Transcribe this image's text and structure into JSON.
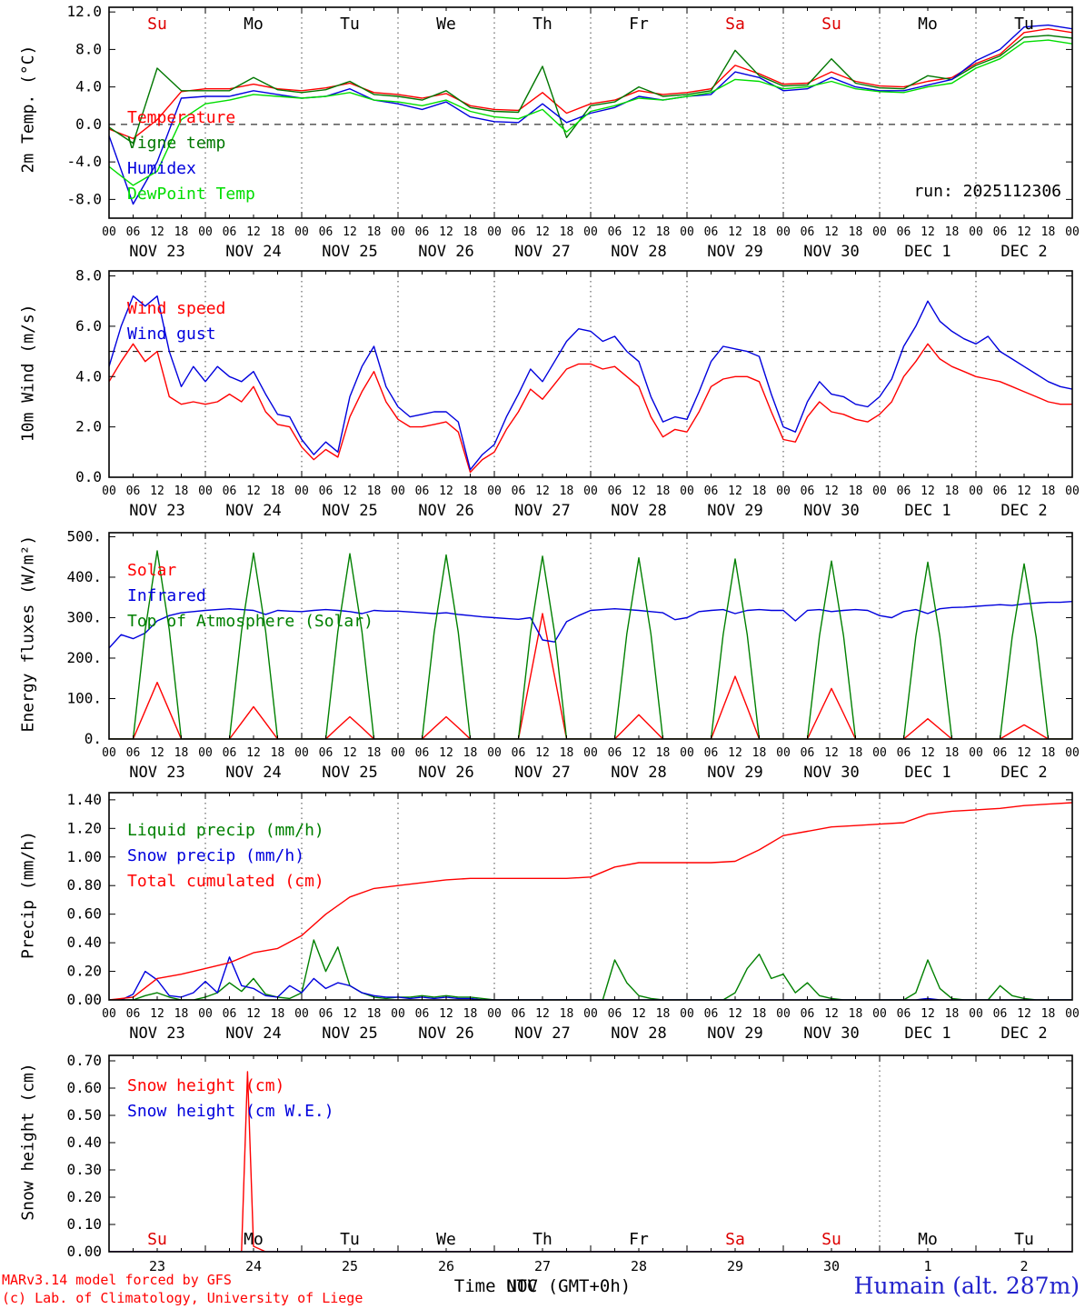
{
  "meta": {
    "run_label": "run: 2025112306",
    "credit_line1": "MARv3.14 model forced by GFS",
    "credit_line2": "(c) Lab. of Climatology, University of Liege",
    "footer_xlabel": "Time UTC (GMT+0h)",
    "footer_month": "NOV",
    "station": "Humain (alt. 287m)",
    "model": "MARv3.14",
    "grid_color": "#444444",
    "frame_color": "#000000"
  },
  "time_axis": {
    "hours_total": 240,
    "tick_step_hours": 6,
    "hour_labels": [
      "00",
      "06",
      "12",
      "18"
    ],
    "dates": [
      "NOV 23",
      "NOV 24",
      "NOV 25",
      "NOV 26",
      "NOV 27",
      "NOV 28",
      "NOV 29",
      "NOV 30",
      "DEC 1",
      "DEC 2"
    ],
    "day_names": [
      "Su",
      "Mo",
      "Tu",
      "We",
      "Th",
      "Fr",
      "Sa",
      "Su",
      "Mo",
      "Tu"
    ],
    "day_name_colors": [
      "#dd0000",
      "#000000",
      "#000000",
      "#000000",
      "#000000",
      "#000000",
      "#dd0000",
      "#dd0000",
      "#000000",
      "#000000"
    ],
    "day_numbers": [
      "23",
      "24",
      "25",
      "26",
      "27",
      "28",
      "29",
      "30",
      "1",
      "2"
    ]
  },
  "chart_data": [
    {
      "type": "line",
      "ylabel": "2m Temp. (°C)",
      "ylim": [
        -10,
        12.5
      ],
      "yticks": [
        -8,
        -4,
        0,
        4,
        8,
        12
      ],
      "ytick_labels": [
        "-8.0",
        "-4.0",
        "0.0",
        "4.0",
        "8.0",
        "12.0"
      ],
      "reference_line": 0,
      "grid_vertical": "daily",
      "series": [
        {
          "label": "Temperature",
          "color": "#ff0000",
          "step_hours": 6,
          "values": [
            -0.5,
            -1.5,
            0.5,
            3.5,
            3.8,
            3.8,
            4.3,
            3.8,
            3.6,
            3.9,
            4.4,
            3.4,
            3.2,
            2.8,
            3.3,
            2.0,
            1.6,
            1.5,
            3.4,
            1.2,
            2.2,
            2.6,
            3.6,
            3.2,
            3.4,
            3.8,
            6.3,
            5.4,
            4.3,
            4.4,
            5.6,
            4.6,
            4.1,
            4.0,
            4.6,
            5.0,
            6.5,
            7.5,
            9.8,
            10.2,
            9.8
          ]
        },
        {
          "label": "Vigne temp",
          "color": "#007700",
          "step_hours": 6,
          "values": [
            -0.3,
            -2.0,
            6.0,
            3.6,
            3.6,
            3.6,
            5.0,
            3.7,
            3.4,
            3.7,
            4.6,
            3.2,
            3.0,
            2.6,
            3.6,
            1.8,
            1.4,
            1.3,
            6.2,
            -1.4,
            2.0,
            2.4,
            4.0,
            3.0,
            3.2,
            3.6,
            7.9,
            5.2,
            4.1,
            4.2,
            7.0,
            4.4,
            3.9,
            3.8,
            5.2,
            4.8,
            6.3,
            7.3,
            9.3,
            9.5,
            9.2
          ]
        },
        {
          "label": "Humidex",
          "color": "#0000dd",
          "step_hours": 6,
          "values": [
            -1.2,
            -8.5,
            -4.0,
            2.8,
            3.0,
            3.0,
            3.6,
            3.2,
            2.8,
            3.0,
            3.8,
            2.6,
            2.2,
            1.6,
            2.4,
            0.8,
            0.3,
            0.2,
            2.2,
            0.2,
            1.2,
            1.8,
            3.0,
            2.6,
            3.0,
            3.2,
            5.6,
            5.0,
            3.6,
            3.8,
            5.0,
            4.0,
            3.6,
            3.6,
            4.2,
            4.8,
            6.8,
            8.0,
            10.4,
            10.6,
            10.2
          ]
        },
        {
          "label": "DewPoint Temp",
          "color": "#00dd00",
          "step_hours": 6,
          "values": [
            -4.5,
            -6.5,
            -5.0,
            0.5,
            2.2,
            2.6,
            3.2,
            3.0,
            2.8,
            3.0,
            3.4,
            2.6,
            2.4,
            2.0,
            2.6,
            1.4,
            0.8,
            0.6,
            1.6,
            -0.8,
            1.4,
            2.0,
            2.8,
            2.6,
            3.0,
            3.4,
            4.8,
            4.6,
            3.8,
            4.0,
            4.6,
            3.8,
            3.5,
            3.4,
            4.0,
            4.4,
            6.0,
            7.0,
            8.8,
            9.0,
            8.6
          ]
        }
      ]
    },
    {
      "type": "line",
      "ylabel": "10m Wind (m/s)",
      "ylim": [
        0,
        8.2
      ],
      "yticks": [
        0,
        2,
        4,
        6,
        8
      ],
      "ytick_labels": [
        "0.0",
        "2.0",
        "4.0",
        "6.0",
        "8.0"
      ],
      "reference_line": 5,
      "grid_vertical": "daily",
      "series": [
        {
          "label": "Wind speed",
          "color": "#ff0000",
          "step_hours": 3,
          "values": [
            3.8,
            4.6,
            5.3,
            4.6,
            5.0,
            3.2,
            2.9,
            3.0,
            2.9,
            3.0,
            3.3,
            3.0,
            3.6,
            2.6,
            2.1,
            2.0,
            1.2,
            0.7,
            1.1,
            0.8,
            2.4,
            3.4,
            4.2,
            3.0,
            2.3,
            2.0,
            2.0,
            2.1,
            2.2,
            1.8,
            0.2,
            0.7,
            1.0,
            1.9,
            2.6,
            3.5,
            3.1,
            3.7,
            4.3,
            4.5,
            4.5,
            4.3,
            4.4,
            4.0,
            3.6,
            2.4,
            1.6,
            1.9,
            1.8,
            2.6,
            3.6,
            3.9,
            4.0,
            4.0,
            3.8,
            2.6,
            1.5,
            1.4,
            2.4,
            3.0,
            2.6,
            2.5,
            2.3,
            2.2,
            2.5,
            3.0,
            4.0,
            4.6,
            5.3,
            4.7,
            4.4,
            4.2,
            4.0,
            3.9,
            3.8,
            3.6,
            3.4,
            3.2,
            3.0,
            2.9,
            2.9
          ]
        },
        {
          "label": "Wind gust",
          "color": "#0000dd",
          "step_hours": 3,
          "values": [
            4.4,
            6.0,
            7.2,
            6.8,
            7.2,
            5.0,
            3.6,
            4.4,
            3.8,
            4.4,
            4.0,
            3.8,
            4.2,
            3.3,
            2.5,
            2.4,
            1.5,
            0.9,
            1.4,
            1.0,
            3.2,
            4.4,
            5.2,
            3.6,
            2.8,
            2.4,
            2.5,
            2.6,
            2.6,
            2.2,
            0.3,
            0.9,
            1.3,
            2.4,
            3.3,
            4.3,
            3.8,
            4.6,
            5.4,
            5.9,
            5.8,
            5.4,
            5.6,
            5.0,
            4.6,
            3.2,
            2.2,
            2.4,
            2.3,
            3.4,
            4.6,
            5.2,
            5.1,
            5.0,
            4.8,
            3.3,
            2.0,
            1.8,
            3.0,
            3.8,
            3.3,
            3.2,
            2.9,
            2.8,
            3.2,
            3.9,
            5.2,
            6.0,
            7.0,
            6.2,
            5.8,
            5.5,
            5.3,
            5.6,
            5.0,
            4.7,
            4.4,
            4.1,
            3.8,
            3.6,
            3.5
          ]
        }
      ]
    },
    {
      "type": "line",
      "ylabel": "Energy fluxes (W/m²)",
      "ylim": [
        0,
        510
      ],
      "yticks": [
        0,
        100,
        200,
        300,
        400,
        500
      ],
      "ytick_labels": [
        "0.",
        "100.",
        "200.",
        "300.",
        "400.",
        "500."
      ],
      "grid_vertical": "daily",
      "series": [
        {
          "label": "Solar",
          "color": "#ff0000",
          "step_hours": 3,
          "values": [
            0,
            0,
            0,
            70,
            140,
            70,
            0,
            0,
            0,
            0,
            0,
            40,
            80,
            40,
            0,
            0,
            0,
            0,
            0,
            28,
            55,
            28,
            0,
            0,
            0,
            0,
            0,
            28,
            55,
            28,
            0,
            0,
            0,
            0,
            0,
            155,
            310,
            155,
            0,
            0,
            0,
            0,
            0,
            30,
            60,
            30,
            0,
            0,
            0,
            0,
            0,
            78,
            155,
            78,
            0,
            0,
            0,
            0,
            0,
            63,
            125,
            63,
            0,
            0,
            0,
            0,
            0,
            25,
            50,
            25,
            0,
            0,
            0,
            0,
            0,
            18,
            35,
            18,
            0,
            0,
            0
          ]
        },
        {
          "label": "Infrared",
          "color": "#0000dd",
          "step_hours": 3,
          "values": [
            225,
            258,
            248,
            262,
            292,
            305,
            312,
            315,
            318,
            320,
            322,
            320,
            318,
            308,
            318,
            316,
            315,
            318,
            320,
            318,
            315,
            310,
            318,
            316,
            316,
            314,
            312,
            310,
            312,
            308,
            305,
            302,
            300,
            298,
            296,
            300,
            245,
            240,
            290,
            305,
            318,
            320,
            322,
            320,
            318,
            315,
            312,
            295,
            300,
            315,
            318,
            320,
            310,
            318,
            320,
            318,
            318,
            292,
            318,
            320,
            315,
            318,
            320,
            318,
            305,
            300,
            315,
            320,
            310,
            322,
            325,
            326,
            328,
            330,
            332,
            330,
            334,
            336,
            338,
            338,
            340
          ]
        },
        {
          "label": "Top of Atmosphere (Solar)",
          "color": "#008000",
          "step_hours": 3,
          "values": [
            0,
            0,
            0,
            270,
            465,
            270,
            0,
            0,
            0,
            0,
            0,
            267,
            460,
            267,
            0,
            0,
            0,
            0,
            0,
            266,
            458,
            266,
            0,
            0,
            0,
            0,
            0,
            264,
            455,
            264,
            0,
            0,
            0,
            0,
            0,
            262,
            452,
            262,
            0,
            0,
            0,
            0,
            0,
            260,
            448,
            260,
            0,
            0,
            0,
            0,
            0,
            258,
            445,
            258,
            0,
            0,
            0,
            0,
            0,
            255,
            440,
            255,
            0,
            0,
            0,
            0,
            0,
            253,
            437,
            253,
            0,
            0,
            0,
            0,
            0,
            251,
            433,
            251,
            0,
            0,
            0
          ]
        }
      ]
    },
    {
      "type": "line",
      "ylabel": "Precip (mm/h)",
      "ylim": [
        0,
        1.45
      ],
      "yticks": [
        0,
        0.2,
        0.4,
        0.6,
        0.8,
        1.0,
        1.2,
        1.4
      ],
      "ytick_labels": [
        "0.00",
        "0.20",
        "0.40",
        "0.60",
        "0.80",
        "1.00",
        "1.20",
        "1.40"
      ],
      "grid_vertical": "daily",
      "series": [
        {
          "label": "Liquid precip (mm/h)",
          "color": "#008000",
          "step_hours": 3,
          "values": [
            0,
            0,
            0,
            0.03,
            0.05,
            0.02,
            0,
            0,
            0.02,
            0.05,
            0.12,
            0.06,
            0.15,
            0.04,
            0.02,
            0.01,
            0.05,
            0.42,
            0.2,
            0.37,
            0.1,
            0.05,
            0.02,
            0.01,
            0.02,
            0.02,
            0.03,
            0.02,
            0.03,
            0.02,
            0.02,
            0.01,
            0,
            0,
            0,
            0,
            0,
            0,
            0,
            0,
            0,
            0,
            0.28,
            0.12,
            0.03,
            0.01,
            0,
            0,
            0,
            0,
            0,
            0,
            0.05,
            0.22,
            0.32,
            0.15,
            0.18,
            0.05,
            0.12,
            0.03,
            0.01,
            0,
            0,
            0,
            0,
            0,
            0,
            0.05,
            0.28,
            0.08,
            0.01,
            0,
            0,
            0,
            0.1,
            0.03,
            0.01,
            0,
            0,
            0,
            0
          ]
        },
        {
          "label": "Snow precip (mm/h)",
          "color": "#0000dd",
          "step_hours": 3,
          "values": [
            0,
            0,
            0.04,
            0.2,
            0.14,
            0.03,
            0.02,
            0.05,
            0.13,
            0.05,
            0.3,
            0.1,
            0.08,
            0.03,
            0.02,
            0.1,
            0.05,
            0.15,
            0.08,
            0.12,
            0.1,
            0.05,
            0.03,
            0.02,
            0.02,
            0.01,
            0.02,
            0.01,
            0.02,
            0.01,
            0.01,
            0,
            0,
            0,
            0,
            0,
            0,
            0,
            0,
            0,
            0,
            0,
            0,
            0,
            0,
            0,
            0,
            0,
            0,
            0,
            0,
            0,
            0,
            0,
            0,
            0,
            0,
            0,
            0,
            0,
            0,
            0,
            0,
            0,
            0,
            0,
            0,
            0,
            0.01,
            0,
            0,
            0,
            0,
            0,
            0,
            0,
            0,
            0,
            0,
            0,
            0
          ]
        },
        {
          "label": "Total cumulated (cm)",
          "color": "#ff0000",
          "step_hours": 6,
          "values": [
            0,
            0.02,
            0.15,
            0.18,
            0.22,
            0.26,
            0.33,
            0.36,
            0.45,
            0.6,
            0.72,
            0.78,
            0.8,
            0.82,
            0.84,
            0.85,
            0.85,
            0.85,
            0.85,
            0.85,
            0.86,
            0.93,
            0.96,
            0.96,
            0.96,
            0.96,
            0.97,
            1.05,
            1.15,
            1.18,
            1.21,
            1.22,
            1.23,
            1.24,
            1.3,
            1.32,
            1.33,
            1.34,
            1.36,
            1.37,
            1.38
          ]
        }
      ]
    },
    {
      "type": "line",
      "ylabel": "Snow height (cm)",
      "ylim": [
        0,
        0.72
      ],
      "yticks": [
        0,
        0.1,
        0.2,
        0.3,
        0.4,
        0.5,
        0.6,
        0.7
      ],
      "ytick_labels": [
        "0.00",
        "0.10",
        "0.20",
        "0.30",
        "0.40",
        "0.50",
        "0.60",
        "0.70"
      ],
      "grid_vertical": "dec1_only",
      "series": [
        {
          "label": "Snow height (cm)",
          "color": "#ff0000",
          "x": [
            0,
            33,
            34.5,
            36,
            39,
            240
          ],
          "values": [
            0,
            0,
            0.66,
            0.02,
            0,
            0
          ]
        },
        {
          "label": "Snow height (cm W.E.)",
          "color": "#0000dd",
          "x": [
            0,
            240
          ],
          "values": [
            0,
            0
          ]
        }
      ]
    }
  ]
}
